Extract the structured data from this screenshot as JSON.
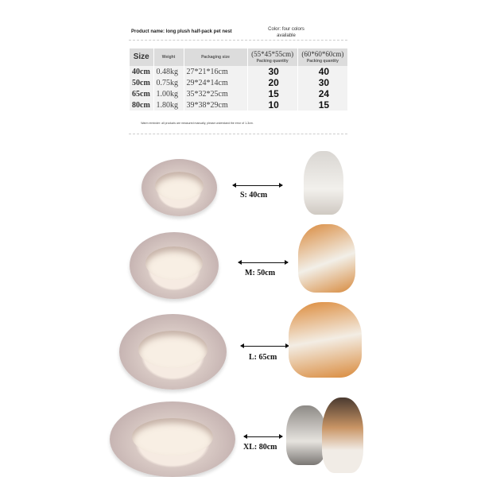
{
  "header": {
    "product_name": "Product name: long plush half-pack pet nest",
    "color_note": "Color: four colors available"
  },
  "table": {
    "headers": {
      "size": "Size",
      "weight": "Weight",
      "packaging": "Packaging size",
      "qty_label": "Packing quantity",
      "box1": "(55*45*55cm)",
      "box2": "(60*60*60cm)"
    },
    "rows": [
      {
        "size": "40cm",
        "weight": "0.48kg",
        "packaging": "27*21*16cm",
        "q1": "30",
        "q2": "40"
      },
      {
        "size": "50cm",
        "weight": "0.75kg",
        "packaging": "29*24*14cm",
        "q1": "20",
        "q2": "30"
      },
      {
        "size": "65cm",
        "weight": "1.00kg",
        "packaging": "35*32*25cm",
        "q1": "15",
        "q2": "24"
      },
      {
        "size": "80cm",
        "weight": "1.80kg",
        "packaging": "39*38*29cm",
        "q1": "10",
        "q2": "15"
      }
    ]
  },
  "warning": "Warm reminder: all products are measured manually, please understand the error of 1-3cm.",
  "sizes": [
    {
      "label": "S: 40cm",
      "animal": "cat"
    },
    {
      "label": "M: 50cm",
      "animal": "corgi"
    },
    {
      "label": "L: 65cm",
      "animal": "shiba"
    },
    {
      "label": "XL: 80cm",
      "animal": "cat-and-dog"
    }
  ]
}
